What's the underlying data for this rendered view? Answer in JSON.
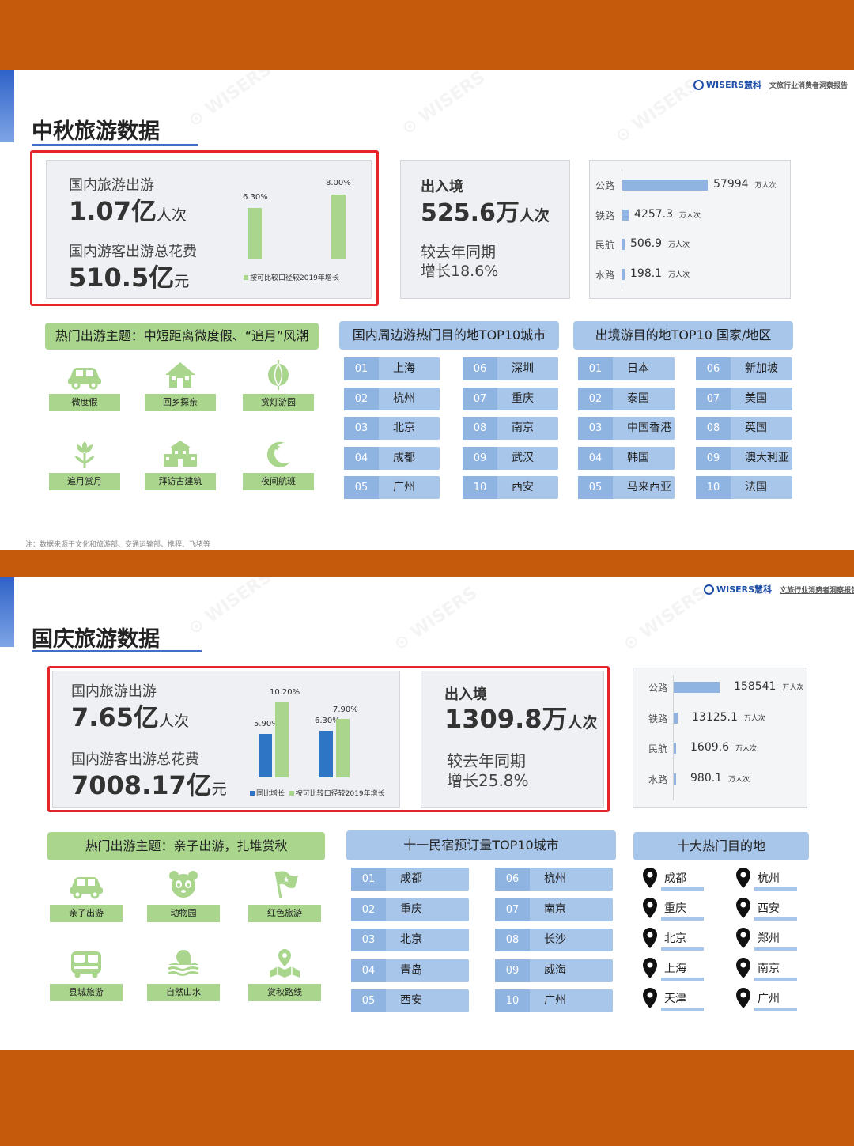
{
  "brand": {
    "name": "WISERS慧科",
    "subtitle": "文旅行业消费者洞察报告"
  },
  "colors": {
    "background": "#C55A0D",
    "accent_green": "#A9D58D",
    "accent_blue": "#A8C6EA",
    "highlight_red": "#E5252A",
    "bar_blue": "#2E75C6"
  },
  "s1": {
    "title": "中秋旅游数据",
    "domestic": {
      "label": "国内旅游出游",
      "value": "1.07亿",
      "unit": "人次",
      "spend_label": "国内游客出游总花费",
      "spend_value": "510.5亿",
      "spend_unit": "元"
    },
    "chart_data": {
      "type": "bar",
      "categories": [
        "国内旅游出游",
        "国内游客出游总花费"
      ],
      "series": [
        {
          "name": "按可比较口径较2019年增长",
          "values": [
            6.3,
            8.0
          ],
          "labels": [
            "6.30%",
            "8.00%"
          ]
        }
      ]
    },
    "intl": {
      "label": "出入境",
      "value": "525.6万",
      "unit": "人次",
      "growth_l1": "较去年同期",
      "growth_l2": "增长18.6%"
    },
    "transport": {
      "unit": "万人次",
      "rows": [
        {
          "label": "公路",
          "value": "57994",
          "n": 57994
        },
        {
          "label": "铁路",
          "value": "4257.3",
          "n": 4257.3
        },
        {
          "label": "民航",
          "value": "506.9",
          "n": 506.9
        },
        {
          "label": "水路",
          "value": "198.1",
          "n": 198.1
        }
      ]
    },
    "themes": {
      "header": "热门出游主题：中短距离微度假、“追月”风潮",
      "items": [
        {
          "label": "微度假",
          "icon": "car-icon"
        },
        {
          "label": "回乡探亲",
          "icon": "house-icon"
        },
        {
          "label": "赏灯游园",
          "icon": "lantern-icon"
        },
        {
          "label": "追月赏月",
          "icon": "flower-icon"
        },
        {
          "label": "拜访古建筑",
          "icon": "building-icon"
        },
        {
          "label": "夜间航班",
          "icon": "moon-icon"
        }
      ]
    },
    "top_cities": {
      "header": "国内周边游热门目的地TOP10城市",
      "nums": [
        "01",
        "02",
        "03",
        "04",
        "05",
        "06",
        "07",
        "08",
        "09",
        "10"
      ],
      "names": [
        "上海",
        "杭州",
        "北京",
        "成都",
        "广州",
        "深圳",
        "重庆",
        "南京",
        "武汉",
        "西安"
      ]
    },
    "top_countries": {
      "header": "出境游目的地TOP10 国家/地区",
      "nums": [
        "01",
        "02",
        "03",
        "04",
        "05",
        "06",
        "07",
        "08",
        "09",
        "10"
      ],
      "names": [
        "日本",
        "泰国",
        "中国香港",
        "韩国",
        "马来西亚",
        "新加坡",
        "美国",
        "英国",
        "澳大利亚",
        "法国"
      ]
    },
    "footnote": "注：数据来源于文化和旅游部、交通运输部、携程、飞猪等"
  },
  "s2": {
    "title": "国庆旅游数据",
    "domestic": {
      "label": "国内旅游出游",
      "value": "7.65亿",
      "unit": "人次",
      "spend_label": "国内游客出游总花费",
      "spend_value": "7008.17亿",
      "spend_unit": "元"
    },
    "chart_data": {
      "type": "bar",
      "categories": [
        "国内旅游出游",
        "国内游客出游总花费"
      ],
      "series": [
        {
          "name": "同比增长",
          "values": [
            5.9,
            6.3
          ],
          "labels": [
            "5.90%",
            "6.30%"
          ]
        },
        {
          "name": "按可比较口径较2019年增长",
          "values": [
            10.2,
            7.9
          ],
          "labels": [
            "10.20%",
            "7.90%"
          ]
        }
      ]
    },
    "intl": {
      "label": "出入境",
      "value": "1309.8万",
      "unit": "人次",
      "growth_l1": "较去年同期",
      "growth_l2": "增长25.8%"
    },
    "transport": {
      "unit": "万人次",
      "rows": [
        {
          "label": "公路",
          "value": "158541",
          "n": 158541
        },
        {
          "label": "铁路",
          "value": "13125.1",
          "n": 13125.1
        },
        {
          "label": "民航",
          "value": "1609.6",
          "n": 1609.6
        },
        {
          "label": "水路",
          "value": "980.1",
          "n": 980.1
        }
      ]
    },
    "themes": {
      "header": "热门出游主题：亲子出游，扎堆赏秋",
      "items": [
        {
          "label": "亲子出游",
          "icon": "car-icon"
        },
        {
          "label": "动物园",
          "icon": "panda-icon"
        },
        {
          "label": "红色旅游",
          "icon": "flag-icon"
        },
        {
          "label": "县城旅游",
          "icon": "bus-icon"
        },
        {
          "label": "自然山水",
          "icon": "mountain-icon"
        },
        {
          "label": "赏秋路线",
          "icon": "route-icon"
        }
      ]
    },
    "top_homestay": {
      "header": "十一民宿预订量TOP10城市",
      "nums": [
        "01",
        "02",
        "03",
        "04",
        "05",
        "06",
        "07",
        "08",
        "09",
        "10"
      ],
      "names": [
        "成都",
        "重庆",
        "北京",
        "青岛",
        "西安",
        "杭州",
        "南京",
        "长沙",
        "威海",
        "广州"
      ]
    },
    "top_dest": {
      "header": "十大热门目的地",
      "names": [
        "成都",
        "杭州",
        "重庆",
        "西安",
        "北京",
        "郑州",
        "上海",
        "南京",
        "天津",
        "广州"
      ]
    }
  }
}
